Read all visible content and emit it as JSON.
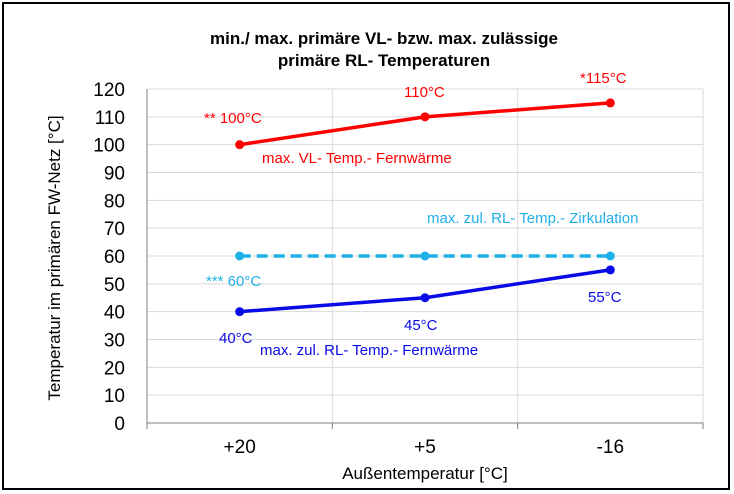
{
  "chart_data": {
    "type": "line",
    "title_line1": "min./ max. primäre VL- bzw.  max. zulässige",
    "title_line2": "primäre  RL- Temperaturen",
    "xlabel": "Außentemperatur [°C]",
    "ylabel": "Temperatur im primären FW-Netz [°C]",
    "categories": [
      "+20",
      "+5",
      "-16"
    ],
    "ylim": [
      0,
      120
    ],
    "yticks": [
      0,
      10,
      20,
      30,
      40,
      50,
      60,
      70,
      80,
      90,
      100,
      110,
      120
    ],
    "grid": true,
    "series": [
      {
        "id": "vl",
        "values": [
          100,
          110,
          115
        ],
        "color": "#ff0000",
        "dash": false
      },
      {
        "id": "zirk",
        "values": [
          60,
          60,
          60
        ],
        "color": "#20b0e8",
        "dash": true
      },
      {
        "id": "rl",
        "values": [
          40,
          45,
          55
        ],
        "color": "#0a0ae6",
        "dash": false
      }
    ],
    "annotations": {
      "vl_series": "max. VL- Temp.- Fernwärme",
      "zirk_series": "max. zul. RL- Temp.- Zirkulation",
      "rl_series": "max. zul. RL- Temp.- Fernwärme",
      "vl_p1": "** 100°C",
      "vl_p2": "110°C",
      "vl_p3": "*115°C",
      "zirk_p1": "*** 60°C",
      "rl_p1": "40°C",
      "rl_p2": "45°C",
      "rl_p3": "55°C"
    }
  }
}
